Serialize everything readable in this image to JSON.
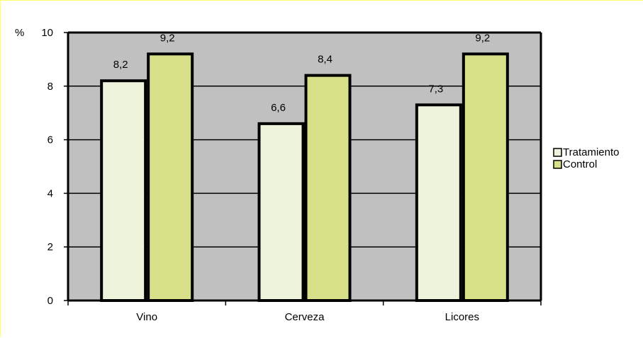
{
  "chart_data": {
    "type": "bar",
    "title": "",
    "xlabel": "",
    "ylabel": "%",
    "ylim": [
      0,
      10
    ],
    "yticks": [
      0,
      2,
      4,
      6,
      8,
      10
    ],
    "grid": true,
    "legend_position": "right",
    "categories": [
      "Vino",
      "Cerveza",
      "Licores"
    ],
    "series": [
      {
        "name": "Tratamiento",
        "values": [
          8.2,
          6.6,
          7.3
        ],
        "labels": [
          "8,2",
          "6,6",
          "7,3"
        ],
        "color": "#eef4dc"
      },
      {
        "name": "Control",
        "values": [
          9.2,
          8.4,
          9.2
        ],
        "labels": [
          "9,2",
          "8,4",
          "9,2"
        ],
        "color": "#d8e08a"
      }
    ],
    "plot_background": "#c0c0c0"
  }
}
